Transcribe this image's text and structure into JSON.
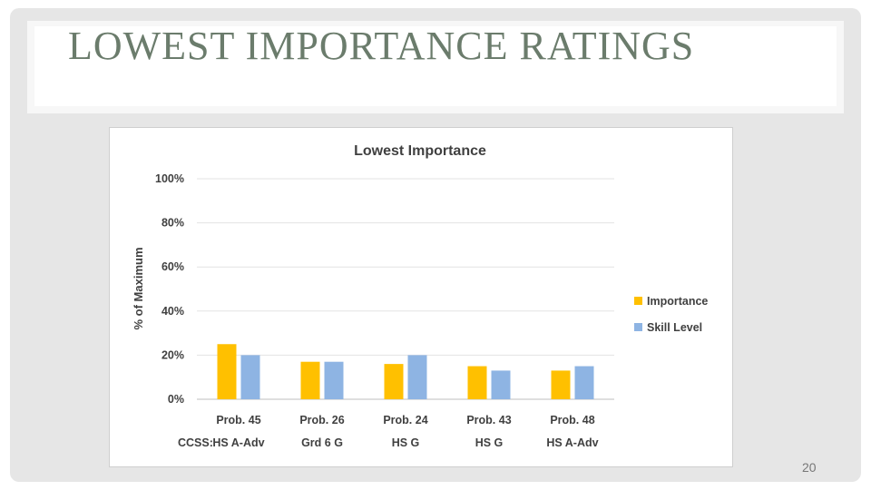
{
  "slide": {
    "title": "LOWEST IMPORTANCE RATINGS",
    "page_number": "20"
  },
  "chart_data": {
    "type": "bar",
    "title": "Lowest Importance",
    "ylabel": "% of Maximum",
    "xlabel": "",
    "ylim": [
      0,
      100
    ],
    "yticks": [
      "0%",
      "20%",
      "40%",
      "60%",
      "80%",
      "100%"
    ],
    "categories": [
      "Prob. 45",
      "Prob. 26",
      "Prob. 24",
      "Prob. 43",
      "Prob. 48"
    ],
    "ccss_prefix": "CCSS:",
    "ccss": [
      "HS A-Adv",
      "Grd 6 G",
      "HS G",
      "HS G",
      "HS A-Adv"
    ],
    "series": [
      {
        "name": "Importance",
        "color": "#ffc000",
        "values": [
          25,
          17,
          16,
          15,
          13
        ]
      },
      {
        "name": "Skill Level",
        "color": "#8eb4e3",
        "values": [
          20,
          17,
          20,
          13,
          15
        ]
      }
    ],
    "grid": true,
    "legend_position": "right"
  }
}
